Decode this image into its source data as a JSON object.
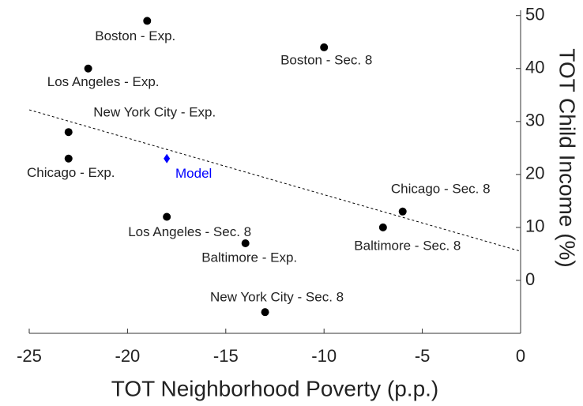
{
  "chart_data": {
    "type": "scatter",
    "xlabel": "TOT Neighborhood Poverty (p.p.)",
    "ylabel": "TOT Child Income (%)",
    "xlim": [
      -25,
      0
    ],
    "ylim": [
      -10,
      51
    ],
    "xticks": [
      -25,
      -20,
      -15,
      -10,
      -5,
      0
    ],
    "yticks": [
      0,
      10,
      20,
      30,
      40,
      50
    ],
    "color": "#000000",
    "points": [
      {
        "label": "Boston - Exp.",
        "x": -19,
        "y": 49
      },
      {
        "label": "Boston - Sec. 8",
        "x": -10,
        "y": 44
      },
      {
        "label": "Los Angeles - Exp.",
        "x": -22,
        "y": 40
      },
      {
        "label": "New York City - Exp.",
        "x": -23,
        "y": 28
      },
      {
        "label": "Chicago - Exp.",
        "x": -23,
        "y": 23
      },
      {
        "label": "Chicago - Sec. 8",
        "x": -6,
        "y": 13
      },
      {
        "label": "Baltimore - Sec. 8",
        "x": -7,
        "y": 10
      },
      {
        "label": "Los Angeles - Sec. 8",
        "x": -18,
        "y": 12
      },
      {
        "label": "Baltimore - Exp.",
        "x": -14,
        "y": 7
      },
      {
        "label": "New York City - Sec. 8",
        "x": -13,
        "y": -6
      }
    ],
    "model": {
      "label": "Model",
      "x": -18,
      "y": 23,
      "color": "#0000ff"
    },
    "fit_line": {
      "x": [
        -25,
        0
      ],
      "y": [
        32.2,
        5.5
      ]
    }
  }
}
